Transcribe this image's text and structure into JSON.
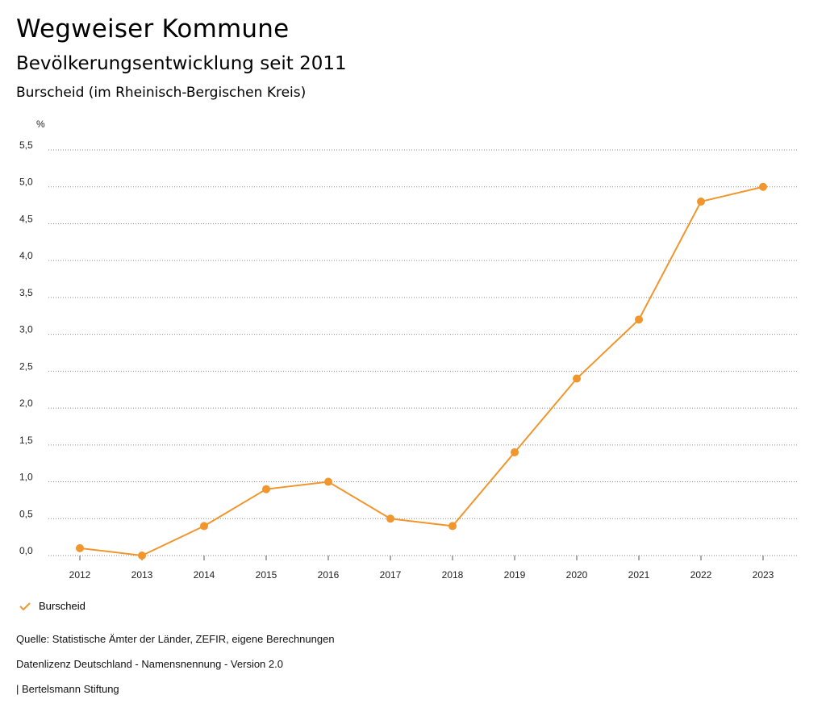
{
  "header": {
    "title": "Wegweiser Kommune",
    "subtitle": "Bevölkerungsentwicklung seit 2011",
    "region": "Burscheid (im Rheinisch-Bergischen Kreis)"
  },
  "chart_data": {
    "type": "line",
    "ylabel": "%",
    "ylim": [
      0,
      5.5
    ],
    "yticks": [
      "0,0",
      "0,5",
      "1,0",
      "1,5",
      "2,0",
      "2,5",
      "3,0",
      "3,5",
      "4,0",
      "4,5",
      "5,0",
      "5,5"
    ],
    "grid": true,
    "legend_position": "bottom-left",
    "categories": [
      "2012",
      "2013",
      "2014",
      "2015",
      "2016",
      "2017",
      "2018",
      "2019",
      "2020",
      "2021",
      "2022",
      "2023"
    ],
    "series": [
      {
        "name": "Burscheid",
        "color": "#f0962d",
        "values": [
          0.1,
          0.0,
          0.4,
          0.9,
          1.0,
          0.5,
          0.4,
          1.4,
          2.4,
          3.2,
          4.8,
          5.0
        ]
      }
    ]
  },
  "legend": {
    "label": "Burscheid",
    "icon": "check-icon"
  },
  "footer": {
    "source": "Quelle: Statistische Ämter der Länder, ZEFIR, eigene Berechnungen",
    "license": "Datenlizenz Deutschland - Namensnennung - Version 2.0",
    "publisher": "| Bertelsmann Stiftung"
  }
}
